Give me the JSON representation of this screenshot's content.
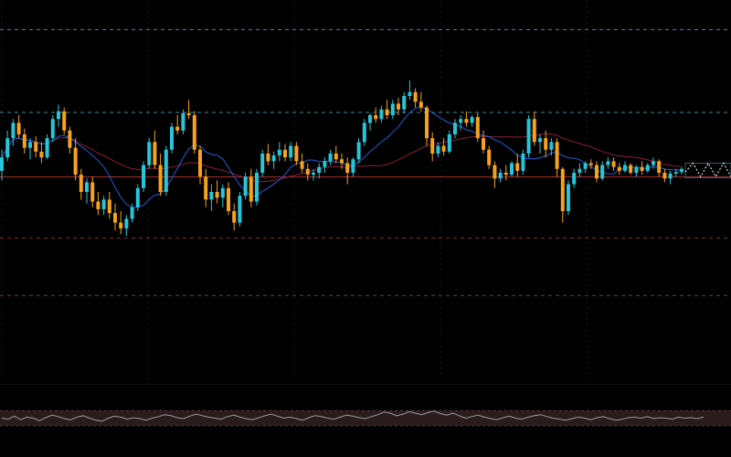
{
  "colors": {
    "background": "#000000",
    "up": "#26c6da",
    "down": "#f7a21b",
    "ma_fast": "#1e5fd6",
    "ma_slow": "#8a1d3c",
    "horizontal_level": "#b03030",
    "grid": "#1c1c1c",
    "level_teal": "#3a8fa0",
    "level_red": "#8a2a2a",
    "oscillator_line": "#9a9a9a",
    "oscillator_band": "#2a1c1c",
    "projection_box": "#3b5b66"
  },
  "chart_data": [
    {
      "type": "candlestick",
      "grid": true,
      "legend": "none",
      "axes_visible": false,
      "ylim": [
        0,
        1000
      ],
      "horizontal_levels": [
        {
          "style": "dashed",
          "color": "level_teal",
          "value": 923
        },
        {
          "style": "dashed",
          "color": "level_teal",
          "value": 707
        },
        {
          "style": "solid",
          "color": "horizontal_level",
          "value": 539
        },
        {
          "style": "dashed",
          "color": "level_red",
          "value": 380
        },
        {
          "style": "dashed",
          "color": "level_red",
          "value": 230
        }
      ],
      "candles": [
        {
          "o": 555,
          "h": 610,
          "l": 530,
          "c": 590
        },
        {
          "o": 590,
          "h": 660,
          "l": 580,
          "c": 640
        },
        {
          "o": 640,
          "h": 690,
          "l": 620,
          "c": 680
        },
        {
          "o": 680,
          "h": 700,
          "l": 640,
          "c": 650
        },
        {
          "o": 650,
          "h": 665,
          "l": 600,
          "c": 615
        },
        {
          "o": 615,
          "h": 640,
          "l": 585,
          "c": 630
        },
        {
          "o": 630,
          "h": 645,
          "l": 590,
          "c": 605
        },
        {
          "o": 605,
          "h": 630,
          "l": 575,
          "c": 590
        },
        {
          "o": 590,
          "h": 650,
          "l": 585,
          "c": 640
        },
        {
          "o": 640,
          "h": 700,
          "l": 630,
          "c": 690
        },
        {
          "o": 690,
          "h": 728,
          "l": 670,
          "c": 710
        },
        {
          "o": 710,
          "h": 720,
          "l": 650,
          "c": 660
        },
        {
          "o": 660,
          "h": 670,
          "l": 600,
          "c": 615
        },
        {
          "o": 615,
          "h": 640,
          "l": 530,
          "c": 545
        },
        {
          "o": 545,
          "h": 560,
          "l": 480,
          "c": 500
        },
        {
          "o": 500,
          "h": 535,
          "l": 470,
          "c": 525
        },
        {
          "o": 525,
          "h": 540,
          "l": 460,
          "c": 475
        },
        {
          "o": 475,
          "h": 500,
          "l": 440,
          "c": 455
        },
        {
          "o": 455,
          "h": 490,
          "l": 440,
          "c": 480
        },
        {
          "o": 480,
          "h": 500,
          "l": 430,
          "c": 445
        },
        {
          "o": 445,
          "h": 470,
          "l": 400,
          "c": 420
        },
        {
          "o": 420,
          "h": 450,
          "l": 390,
          "c": 405
        },
        {
          "o": 405,
          "h": 440,
          "l": 385,
          "c": 430
        },
        {
          "o": 430,
          "h": 470,
          "l": 420,
          "c": 460
        },
        {
          "o": 460,
          "h": 520,
          "l": 450,
          "c": 510
        },
        {
          "o": 510,
          "h": 580,
          "l": 500,
          "c": 570
        },
        {
          "o": 570,
          "h": 640,
          "l": 560,
          "c": 630
        },
        {
          "o": 630,
          "h": 660,
          "l": 560,
          "c": 570
        },
        {
          "o": 570,
          "h": 600,
          "l": 490,
          "c": 500
        },
        {
          "o": 500,
          "h": 620,
          "l": 490,
          "c": 610
        },
        {
          "o": 610,
          "h": 680,
          "l": 600,
          "c": 670
        },
        {
          "o": 670,
          "h": 700,
          "l": 650,
          "c": 660
        },
        {
          "o": 660,
          "h": 715,
          "l": 650,
          "c": 705
        },
        {
          "o": 705,
          "h": 740,
          "l": 690,
          "c": 700
        },
        {
          "o": 700,
          "h": 710,
          "l": 600,
          "c": 610
        },
        {
          "o": 610,
          "h": 620,
          "l": 520,
          "c": 540
        },
        {
          "o": 540,
          "h": 560,
          "l": 460,
          "c": 480
        },
        {
          "o": 480,
          "h": 520,
          "l": 450,
          "c": 500
        },
        {
          "o": 500,
          "h": 530,
          "l": 470,
          "c": 485
        },
        {
          "o": 485,
          "h": 520,
          "l": 460,
          "c": 510
        },
        {
          "o": 510,
          "h": 525,
          "l": 440,
          "c": 450
        },
        {
          "o": 450,
          "h": 470,
          "l": 400,
          "c": 420
        },
        {
          "o": 420,
          "h": 500,
          "l": 410,
          "c": 490
        },
        {
          "o": 490,
          "h": 550,
          "l": 480,
          "c": 540
        },
        {
          "o": 540,
          "h": 560,
          "l": 460,
          "c": 475
        },
        {
          "o": 475,
          "h": 560,
          "l": 465,
          "c": 550
        },
        {
          "o": 550,
          "h": 610,
          "l": 540,
          "c": 600
        },
        {
          "o": 600,
          "h": 625,
          "l": 570,
          "c": 580
        },
        {
          "o": 580,
          "h": 605,
          "l": 560,
          "c": 595
        },
        {
          "o": 595,
          "h": 630,
          "l": 580,
          "c": 610
        },
        {
          "o": 610,
          "h": 625,
          "l": 580,
          "c": 590
        },
        {
          "o": 590,
          "h": 630,
          "l": 580,
          "c": 620
        },
        {
          "o": 620,
          "h": 630,
          "l": 570,
          "c": 580
        },
        {
          "o": 580,
          "h": 600,
          "l": 550,
          "c": 560
        },
        {
          "o": 560,
          "h": 575,
          "l": 530,
          "c": 545
        },
        {
          "o": 545,
          "h": 560,
          "l": 530,
          "c": 550
        },
        {
          "o": 550,
          "h": 575,
          "l": 535,
          "c": 565
        },
        {
          "o": 565,
          "h": 590,
          "l": 550,
          "c": 580
        },
        {
          "o": 580,
          "h": 610,
          "l": 570,
          "c": 600
        },
        {
          "o": 600,
          "h": 620,
          "l": 575,
          "c": 585
        },
        {
          "o": 585,
          "h": 600,
          "l": 560,
          "c": 575
        },
        {
          "o": 575,
          "h": 590,
          "l": 520,
          "c": 550
        },
        {
          "o": 550,
          "h": 590,
          "l": 540,
          "c": 585
        },
        {
          "o": 585,
          "h": 640,
          "l": 575,
          "c": 630
        },
        {
          "o": 630,
          "h": 690,
          "l": 620,
          "c": 680
        },
        {
          "o": 680,
          "h": 705,
          "l": 660,
          "c": 700
        },
        {
          "o": 700,
          "h": 720,
          "l": 680,
          "c": 690
        },
        {
          "o": 690,
          "h": 725,
          "l": 680,
          "c": 715
        },
        {
          "o": 715,
          "h": 740,
          "l": 690,
          "c": 700
        },
        {
          "o": 700,
          "h": 740,
          "l": 690,
          "c": 730
        },
        {
          "o": 730,
          "h": 745,
          "l": 700,
          "c": 715
        },
        {
          "o": 715,
          "h": 760,
          "l": 705,
          "c": 750
        },
        {
          "o": 750,
          "h": 790,
          "l": 740,
          "c": 760
        },
        {
          "o": 760,
          "h": 770,
          "l": 720,
          "c": 735
        },
        {
          "o": 735,
          "h": 760,
          "l": 710,
          "c": 720
        },
        {
          "o": 720,
          "h": 725,
          "l": 620,
          "c": 640
        },
        {
          "o": 640,
          "h": 655,
          "l": 580,
          "c": 600
        },
        {
          "o": 600,
          "h": 630,
          "l": 590,
          "c": 620
        },
        {
          "o": 620,
          "h": 640,
          "l": 595,
          "c": 605
        },
        {
          "o": 605,
          "h": 660,
          "l": 600,
          "c": 650
        },
        {
          "o": 650,
          "h": 690,
          "l": 640,
          "c": 680
        },
        {
          "o": 680,
          "h": 700,
          "l": 660,
          "c": 690
        },
        {
          "o": 690,
          "h": 710,
          "l": 670,
          "c": 680
        },
        {
          "o": 680,
          "h": 700,
          "l": 670,
          "c": 695
        },
        {
          "o": 695,
          "h": 705,
          "l": 630,
          "c": 640
        },
        {
          "o": 640,
          "h": 660,
          "l": 600,
          "c": 610
        },
        {
          "o": 610,
          "h": 620,
          "l": 560,
          "c": 570
        },
        {
          "o": 570,
          "h": 580,
          "l": 510,
          "c": 535
        },
        {
          "o": 535,
          "h": 560,
          "l": 525,
          "c": 550
        },
        {
          "o": 550,
          "h": 570,
          "l": 530,
          "c": 545
        },
        {
          "o": 545,
          "h": 580,
          "l": 540,
          "c": 575
        },
        {
          "o": 575,
          "h": 600,
          "l": 540,
          "c": 555
        },
        {
          "o": 555,
          "h": 610,
          "l": 545,
          "c": 600
        },
        {
          "o": 600,
          "h": 700,
          "l": 590,
          "c": 690
        },
        {
          "o": 690,
          "h": 710,
          "l": 620,
          "c": 630
        },
        {
          "o": 630,
          "h": 650,
          "l": 600,
          "c": 640
        },
        {
          "o": 640,
          "h": 660,
          "l": 590,
          "c": 610
        },
        {
          "o": 610,
          "h": 640,
          "l": 595,
          "c": 630
        },
        {
          "o": 630,
          "h": 640,
          "l": 540,
          "c": 560
        },
        {
          "o": 560,
          "h": 565,
          "l": 420,
          "c": 450
        },
        {
          "o": 450,
          "h": 530,
          "l": 440,
          "c": 520
        },
        {
          "o": 520,
          "h": 560,
          "l": 510,
          "c": 550
        },
        {
          "o": 550,
          "h": 575,
          "l": 540,
          "c": 560
        },
        {
          "o": 560,
          "h": 580,
          "l": 550,
          "c": 575
        },
        {
          "o": 575,
          "h": 585,
          "l": 560,
          "c": 570
        },
        {
          "o": 570,
          "h": 580,
          "l": 525,
          "c": 535
        },
        {
          "o": 535,
          "h": 580,
          "l": 530,
          "c": 570
        },
        {
          "o": 570,
          "h": 590,
          "l": 560,
          "c": 580
        },
        {
          "o": 580,
          "h": 590,
          "l": 555,
          "c": 565
        },
        {
          "o": 565,
          "h": 575,
          "l": 545,
          "c": 555
        },
        {
          "o": 555,
          "h": 580,
          "l": 550,
          "c": 570
        },
        {
          "o": 570,
          "h": 575,
          "l": 545,
          "c": 550
        },
        {
          "o": 550,
          "h": 570,
          "l": 540,
          "c": 565
        },
        {
          "o": 565,
          "h": 580,
          "l": 545,
          "c": 555
        },
        {
          "o": 555,
          "h": 575,
          "l": 550,
          "c": 570
        },
        {
          "o": 570,
          "h": 590,
          "l": 560,
          "c": 580
        },
        {
          "o": 580,
          "h": 585,
          "l": 540,
          "c": 550
        },
        {
          "o": 550,
          "h": 560,
          "l": 525,
          "c": 535
        },
        {
          "o": 535,
          "h": 555,
          "l": 520,
          "c": 548
        },
        {
          "o": 548,
          "h": 560,
          "l": 540,
          "c": 552
        },
        {
          "o": 552,
          "h": 565,
          "l": 545,
          "c": 560
        }
      ],
      "projection": {
        "levels": [
          575,
          537
        ],
        "path": [
          552,
          575,
          540,
          575,
          540,
          575,
          540
        ]
      }
    },
    {
      "type": "line",
      "grid": true,
      "legend": "none",
      "axes_visible": false,
      "ylim": [
        0,
        100
      ],
      "bands": [
        35,
        65
      ],
      "series": [
        {
          "color": "oscillator_line",
          "values": [
            50,
            48,
            54,
            47,
            52,
            50,
            45,
            51,
            56,
            53,
            49,
            47,
            52,
            55,
            50,
            46,
            44,
            50,
            54,
            52,
            48,
            51,
            49,
            46,
            50,
            53,
            57,
            55,
            51,
            49,
            54,
            58,
            55,
            52,
            50,
            48,
            53,
            56,
            52,
            49,
            47,
            51,
            55,
            58,
            54,
            50,
            52,
            49,
            46,
            51,
            55,
            53,
            50,
            48,
            52,
            56,
            54,
            51,
            49,
            53,
            57,
            62,
            60,
            55,
            58,
            63,
            60,
            57,
            61,
            64,
            59,
            56,
            60,
            55,
            50,
            53,
            56,
            52,
            49,
            47,
            51,
            54,
            50,
            48,
            52,
            55,
            57,
            53,
            50,
            48,
            46,
            49,
            52,
            50,
            47,
            51,
            53,
            49,
            46,
            48,
            51,
            52,
            50,
            53,
            49,
            51,
            50,
            48,
            52,
            50,
            51,
            49,
            52
          ]
        }
      ]
    }
  ]
}
